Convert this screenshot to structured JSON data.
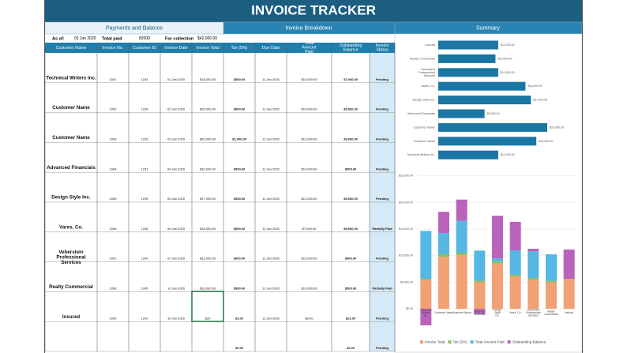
{
  "header": {
    "title": "INVOICE TRACKER"
  },
  "sections": [
    "Payments and Balance",
    "Invoice Breakdown",
    "Summary"
  ],
  "overview": {
    "as_of_label": "As of:",
    "as_of": "03 Jun 2020",
    "total_paid_label": "Total paid",
    "total_paid": "82000",
    "for_collection_label": "For collection",
    "for_collection": "$42,000.00"
  },
  "table": {
    "columns": [
      "Customer Name",
      "Invoice No.",
      "Customer ID",
      "Invoice Date",
      "Invoice Total",
      "Tax (5%)",
      "Due Date",
      "Total Amount Paid",
      "Outstanding Balance",
      "Invoice Status"
    ],
    "rows": [
      [
        "Technical Writers Inc.",
        "1001",
        "1234",
        "01 Jan 2020",
        "$15,000.00",
        "$800.00",
        "11 Jan 2020",
        "$10,000.00",
        "$7,000.00",
        "Pending"
      ],
      [
        "Customer Name",
        "1002",
        "1228",
        "02 Jan 2020",
        "$15,000.00",
        "$800.00",
        "11 Jan 2020",
        "$10,000.00",
        "$5,800.00",
        "Pending"
      ],
      [
        "Customer Name",
        "1003",
        "1226",
        "03 Jan 2020",
        "$20,000.00",
        "$1,000.00",
        "11 Jan 2020",
        "$12,000.00",
        "$9,000.00",
        "Pending"
      ],
      [
        "Advanced Financials",
        "1004",
        "1237",
        "04 Jan 2020",
        "$10,000.00",
        "$500.00",
        "11 Jan 2020",
        "$10,000.00",
        "$500.00",
        "Pending"
      ],
      [
        "Design Style Inc.",
        "1005",
        "1235",
        "05 Jan 2020",
        "$17,000.00",
        "$850.00",
        "11 Jan 2020",
        "$12,000.00",
        "$5,850.00",
        "Pending"
      ],
      [
        "Vares, Co.",
        "1006",
        "1238",
        "06 Jan 2020",
        "$16,000.00",
        "$800.00",
        "11 Jan 2020",
        "$7,000.00",
        "$9,800.00",
        "Partially Paid"
      ],
      [
        "Veberstein Professional Services",
        "1007",
        "1240",
        "07 Jan 2020",
        "$12,000.00",
        "$600.00",
        "11 Jan 2020",
        "$12,000.00",
        "$600.00",
        "Pending"
      ],
      [
        "Realty Commercial",
        "1008",
        "1245",
        "10 Jan 2020",
        "$10,000.00",
        "$500.00",
        "11 Jan 2020",
        "$10,000.00",
        "$500.00",
        "Partially Paid"
      ],
      [
        "Insured",
        "1009",
        "1242",
        "10 Jan 2020",
        "$20",
        "$1.00",
        "11 Jan 2020",
        "$0.00",
        "$21.00",
        "Pending"
      ],
      [
        null,
        null,
        null,
        null,
        null,
        "$0.00",
        null,
        null,
        "$0.00",
        "Pending"
      ]
    ]
  },
  "summary": {
    "bar_chart": {
      "type": "bar",
      "categories": [
        "Insured",
        "Realty Commercial",
        "Veberstein Professional Services",
        "Vares, Co.",
        "Design Style Inc.",
        "Advanced Financials",
        "Customer Name",
        "Customer Name",
        "Technical Writers Inc."
      ],
      "values": [
        11000,
        10500,
        11000,
        16000,
        17000,
        8500,
        20000,
        18000,
        11000
      ],
      "value_labels": [
        "$11,000.00",
        "$10,500.00",
        "$11,000.00",
        "$16,000.00",
        "$17,000.00",
        "$8,500.00",
        "$20,000.00",
        "$18,000.00",
        "$11,000.00"
      ],
      "color": "#1a76a3"
    },
    "column_chart": {
      "type": "stacked_bar",
      "categories": [
        "Technical Writers Inc.",
        "Customer Name",
        "Customer Name",
        "Advanced Financials",
        "Design Style Inc.",
        "Vares, Co.",
        "Veberstein Professional Services",
        "Realty Commercial",
        "Insured"
      ],
      "series": [
        {
          "name": "Invoice Total",
          "color": "#f1a173",
          "values": [
            5500,
            9800,
            10100,
            5000,
            8500,
            6100,
            5500,
            5000,
            5650
          ]
        },
        {
          "name": "Tax (5%)",
          "color": "#8fbf5a",
          "values": [
            150,
            450,
            450,
            300,
            400,
            300,
            300,
            250,
            0
          ]
        },
        {
          "name": "Total Amount Paid",
          "color": "#55b7e2",
          "values": [
            9000,
            4000,
            6000,
            5650,
            600,
            4600,
            5000,
            5000,
            0
          ]
        },
        {
          "name": "Outstanding Balance",
          "color": "#b963bb",
          "values": [
            -3100,
            4000,
            4000,
            -1000,
            8000,
            5350,
            500,
            0,
            5500
          ]
        }
      ],
      "ylim": [
        -4000,
        26000
      ],
      "yticks": [
        {
          "value": 0,
          "label": "$0.00"
        },
        {
          "value": 5000,
          "label": "$5,000.00"
        },
        {
          "value": 10000,
          "label": "$10,000.00"
        },
        {
          "value": 15000,
          "label": "$15,000.00"
        },
        {
          "value": 20000,
          "label": "$20,000.00"
        },
        {
          "value": 25000,
          "label": "$25,000.00"
        }
      ]
    }
  }
}
